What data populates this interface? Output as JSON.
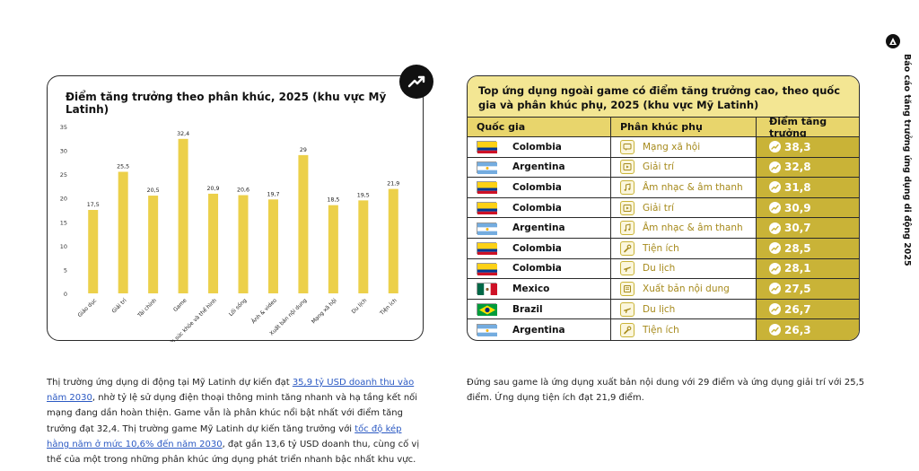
{
  "sidebar": {
    "label": "Báo cáo tăng trưởng ứng dụng di động 2025",
    "logo_icon": "brand-logo-icon"
  },
  "chart_data": {
    "type": "bar",
    "title": "Điểm tăng trưởng theo phân khúc, 2025 (khu vực Mỹ Latinh)",
    "categories": [
      "Giáo dục",
      "Giải trí",
      "Tài chính",
      "Game",
      "Theo dõi sức khỏe và thể hình",
      "Lối sống",
      "Ảnh & video",
      "Xuất bản nội dung",
      "Mạng xã hội",
      "Du lịch",
      "Tiện ích"
    ],
    "values": [
      17.5,
      25.5,
      20.5,
      32.4,
      20.9,
      20.6,
      19.7,
      29,
      18.5,
      19.5,
      21.9
    ],
    "value_labels": [
      "17,5",
      "25,5",
      "20,5",
      "32,4",
      "20,9",
      "20,6",
      "19,7",
      "29",
      "18,5",
      "19,5",
      "21,9"
    ],
    "yticks": [
      0,
      5,
      10,
      15,
      20,
      25,
      30,
      35
    ],
    "ylim": [
      0,
      35
    ],
    "xlabel": "",
    "ylabel": "",
    "bar_color": "#ecd04a"
  },
  "table": {
    "title": "Top ứng dụng ngoài game có điểm tăng trưởng cao, theo quốc gia và phân khúc phụ, 2025 (khu vực Mỹ Latinh)",
    "headers": {
      "country": "Quốc gia",
      "segment": "Phân khúc phụ",
      "score": "Điểm tăng trưởng"
    },
    "rows": [
      {
        "flag": "colombia",
        "country": "Colombia",
        "segment_icon": "chat-icon",
        "segment": "Mạng xã hội",
        "score": "38,3"
      },
      {
        "flag": "argentina",
        "country": "Argentina",
        "segment_icon": "play-icon",
        "segment": "Giải trí",
        "score": "32,8"
      },
      {
        "flag": "colombia",
        "country": "Colombia",
        "segment_icon": "music-icon",
        "segment": "Âm nhạc & âm thanh",
        "score": "31,8"
      },
      {
        "flag": "colombia",
        "country": "Colombia",
        "segment_icon": "play-icon",
        "segment": "Giải trí",
        "score": "30,9"
      },
      {
        "flag": "argentina",
        "country": "Argentina",
        "segment_icon": "music-icon",
        "segment": "Âm nhạc & âm thanh",
        "score": "30,7"
      },
      {
        "flag": "colombia",
        "country": "Colombia",
        "segment_icon": "wrench-icon",
        "segment": "Tiện ích",
        "score": "28,5"
      },
      {
        "flag": "colombia",
        "country": "Colombia",
        "segment_icon": "plane-icon",
        "segment": "Du lịch",
        "score": "28,1"
      },
      {
        "flag": "mexico",
        "country": "Mexico",
        "segment_icon": "document-icon",
        "segment": "Xuất bản nội dung",
        "score": "27,5"
      },
      {
        "flag": "brazil",
        "country": "Brazil",
        "segment_icon": "plane-icon",
        "segment": "Du lịch",
        "score": "26,7"
      },
      {
        "flag": "argentina",
        "country": "Argentina",
        "segment_icon": "wrench-icon",
        "segment": "Tiện ích",
        "score": "26,3"
      }
    ]
  },
  "paragraphs": {
    "left": {
      "t1": "Thị trường ứng dụng di động tại Mỹ Latinh dự kiến đạt ",
      "link1": "35,9 tỷ USD doanh thu vào năm 2030",
      "t2": ", nhờ tỷ lệ sử dụng điện thoại thông minh tăng nhanh và hạ tầng kết nối mạng đang dần hoàn thiện. Game vẫn là phân khúc nổi bật nhất với điểm tăng trưởng đạt 32,4. Thị trường game Mỹ Latinh dự kiến tăng trưởng với ",
      "link2": "tốc độ kép hằng năm ở mức 10,6% đến năm 2030",
      "t3": ", đạt gần 13,6 tỷ USD doanh thu, cùng cố vị thế của một trong những phân khúc ứng dụng phát triển nhanh bậc nhất khu vực."
    },
    "right": "Đứng sau game là ứng dụng xuất bản nội dung với 29 điểm và ứng dụng giải trí với 25,5 điểm. Ứng dụng tiện ích đạt 21,9 điểm."
  }
}
